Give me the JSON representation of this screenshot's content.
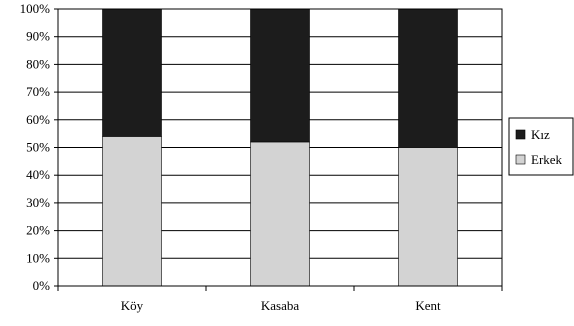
{
  "chart_data": {
    "type": "bar",
    "stacked": true,
    "percent_stacked": true,
    "categories": [
      "Köy",
      "Kasaba",
      "Kent"
    ],
    "series": [
      {
        "name": "Erkek",
        "values": [
          54,
          52,
          50
        ],
        "color": "#d3d3d3"
      },
      {
        "name": "Kız",
        "values": [
          46,
          48,
          50
        ],
        "color": "#1c1c1c"
      }
    ],
    "y_ticks": [
      "0%",
      "10%",
      "20%",
      "30%",
      "40%",
      "50%",
      "60%",
      "70%",
      "80%",
      "90%",
      "100%"
    ],
    "ylim": [
      0,
      100
    ],
    "grid": true,
    "legend": {
      "position": "right",
      "entries": [
        "Kız",
        "Erkek"
      ]
    }
  }
}
